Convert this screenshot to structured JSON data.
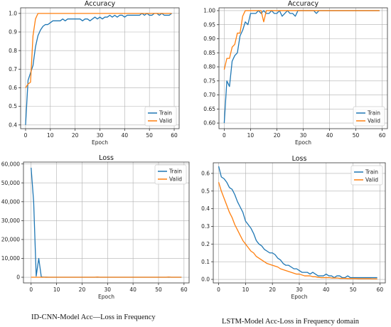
{
  "captions": {
    "left": "ID-CNN-Model Acc—Loss in Frequency",
    "right": "LSTM-Model Acc-Loss in Frequency domain"
  },
  "colors": {
    "train": "#1f77b4",
    "valid": "#ff7f0e",
    "grid": "#b0b0b0"
  },
  "chart_data": [
    {
      "id": "cnn-acc",
      "type": "line",
      "title": "Accuracy",
      "xlabel": "Epoch",
      "ylabel": "",
      "xlim": [
        -2,
        62
      ],
      "ylim": [
        0.38,
        1.03
      ],
      "xticks": [
        0,
        10,
        20,
        30,
        40,
        50,
        60
      ],
      "yticks": [
        0.4,
        0.5,
        0.6,
        0.7,
        0.8,
        0.9,
        1.0
      ],
      "ytick_labels": [
        "0.4",
        "0.5",
        "0.6",
        "0.7",
        "0.8",
        "0.9",
        "1.0"
      ],
      "grid": true,
      "legend": "bottom-right",
      "series": [
        {
          "name": "Train",
          "color": "train",
          "y": [
            0.4,
            0.64,
            0.68,
            0.72,
            0.82,
            0.88,
            0.91,
            0.93,
            0.94,
            0.94,
            0.95,
            0.96,
            0.96,
            0.96,
            0.96,
            0.97,
            0.96,
            0.97,
            0.97,
            0.97,
            0.97,
            0.97,
            0.97,
            0.96,
            0.97,
            0.97,
            0.96,
            0.97,
            0.98,
            0.97,
            0.98,
            0.97,
            0.98,
            0.98,
            0.99,
            0.98,
            0.99,
            0.98,
            0.99,
            0.99,
            0.98,
            0.99,
            0.99,
            0.99,
            0.99,
            0.99,
            0.99,
            1.0,
            0.99,
            1.0,
            0.99,
            0.99,
            1.0,
            1.0,
            0.99,
            1.0,
            0.99,
            0.99,
            0.99,
            1.0
          ]
        },
        {
          "name": "Valid",
          "color": "valid",
          "y": [
            0.6,
            0.62,
            0.63,
            0.88,
            0.97,
            1.0,
            1.0,
            1.0,
            1.0,
            1.0,
            1.0,
            1.0,
            1.0,
            1.0,
            1.0,
            1.0,
            1.0,
            1.0,
            1.0,
            1.0,
            1.0,
            1.0,
            1.0,
            1.0,
            1.0,
            1.0,
            1.0,
            1.0,
            1.0,
            1.0,
            1.0,
            1.0,
            1.0,
            1.0,
            1.0,
            1.0,
            1.0,
            1.0,
            1.0,
            1.0,
            1.0,
            1.0,
            1.0,
            1.0,
            1.0,
            1.0,
            1.0,
            1.0,
            1.0,
            1.0,
            1.0,
            1.0,
            1.0,
            1.0,
            1.0,
            1.0,
            1.0,
            1.0,
            1.0,
            1.0
          ]
        }
      ]
    },
    {
      "id": "lstm-acc",
      "type": "line",
      "title": "Accuracy",
      "xlabel": "Epoch",
      "ylabel": "",
      "xlim": [
        -2,
        62
      ],
      "ylim": [
        0.58,
        1.01
      ],
      "xticks": [
        0,
        10,
        20,
        30,
        40,
        50,
        60
      ],
      "yticks": [
        0.6,
        0.65,
        0.7,
        0.75,
        0.8,
        0.85,
        0.9,
        0.95,
        1.0
      ],
      "ytick_labels": [
        "0.60",
        "0.65",
        "0.70",
        "0.75",
        "0.80",
        "0.85",
        "0.90",
        "0.95",
        "1.00"
      ],
      "grid": true,
      "legend": "bottom-right",
      "series": [
        {
          "name": "Train",
          "color": "train",
          "y": [
            0.6,
            0.75,
            0.73,
            0.82,
            0.84,
            0.85,
            0.91,
            0.93,
            0.96,
            0.95,
            0.99,
            0.99,
            0.99,
            1.0,
            0.99,
            1.0,
            0.99,
            0.99,
            1.0,
            0.99,
            0.99,
            1.0,
            0.98,
            0.99,
            1.0,
            0.99,
            0.99,
            0.98,
            1.0,
            1.0,
            1.0,
            1.0,
            1.0,
            1.0,
            1.0,
            0.99,
            1.0,
            1.0,
            1.0,
            1.0,
            1.0,
            1.0,
            1.0,
            1.0,
            1.0,
            1.0,
            1.0,
            1.0,
            1.0,
            1.0,
            1.0,
            1.0,
            1.0,
            1.0,
            1.0,
            1.0,
            1.0,
            1.0,
            1.0,
            1.0
          ]
        },
        {
          "name": "Valid",
          "color": "valid",
          "y": [
            0.79,
            0.83,
            0.83,
            0.87,
            0.88,
            0.92,
            0.92,
            0.98,
            1.0,
            1.0,
            1.0,
            1.0,
            1.0,
            1.0,
            1.0,
            0.96,
            1.0,
            1.0,
            1.0,
            1.0,
            1.0,
            1.0,
            1.0,
            1.0,
            1.0,
            1.0,
            1.0,
            1.0,
            1.0,
            1.0,
            1.0,
            1.0,
            1.0,
            1.0,
            1.0,
            1.0,
            1.0,
            1.0,
            1.0,
            1.0,
            1.0,
            1.0,
            1.0,
            1.0,
            1.0,
            1.0,
            1.0,
            1.0,
            1.0,
            1.0,
            1.0,
            1.0,
            1.0,
            1.0,
            1.0,
            1.0,
            1.0,
            1.0,
            1.0,
            1.0
          ]
        }
      ]
    },
    {
      "id": "cnn-loss",
      "type": "line",
      "title": "Loss",
      "xlabel": "Epoch",
      "ylabel": "",
      "xlim": [
        -3,
        62
      ],
      "ylim": [
        -3000,
        61000
      ],
      "xticks": [
        0,
        10,
        20,
        30,
        40,
        50,
        60
      ],
      "yticks": [
        0,
        10000,
        20000,
        30000,
        40000,
        50000,
        60000
      ],
      "ytick_labels": [
        "0",
        "10,000",
        "20,000",
        "30,000",
        "40,000",
        "50,000",
        "60,000"
      ],
      "grid": true,
      "legend": "top-right",
      "series": [
        {
          "name": "Train",
          "color": "train",
          "y": [
            58000,
            40000,
            600,
            10000,
            200,
            50,
            30,
            20,
            10,
            10,
            10,
            10,
            10,
            10,
            10,
            10,
            10,
            10,
            10,
            10,
            10,
            10,
            10,
            10,
            10,
            10,
            10,
            10,
            10,
            10,
            10,
            10,
            10,
            10,
            10,
            10,
            10,
            10,
            10,
            10,
            10,
            10,
            10,
            10,
            10,
            10,
            10,
            10,
            10,
            10,
            10,
            10,
            10,
            10,
            10,
            10,
            10,
            10,
            10,
            10
          ]
        },
        {
          "name": "Valid",
          "color": "valid",
          "y": [
            0,
            0,
            0,
            0,
            0,
            0,
            0,
            0,
            0,
            0,
            0,
            0,
            0,
            0,
            0,
            0,
            0,
            0,
            0,
            0,
            0,
            0,
            0,
            0,
            0,
            0,
            150,
            0,
            0,
            0,
            0,
            0,
            0,
            0,
            0,
            0,
            0,
            0,
            0,
            0,
            0,
            0,
            0,
            0,
            0,
            0,
            0,
            0,
            0,
            0,
            0,
            0,
            0,
            0,
            150,
            0,
            0,
            0,
            0,
            0
          ]
        }
      ]
    },
    {
      "id": "lstm-loss",
      "type": "line",
      "title": "Loss",
      "xlabel": "Epoch",
      "ylabel": "",
      "xlim": [
        -2,
        62
      ],
      "ylim": [
        -0.02,
        0.66
      ],
      "xticks": [
        0,
        10,
        20,
        30,
        40,
        50,
        60
      ],
      "yticks": [
        0.0,
        0.1,
        0.2,
        0.3,
        0.4,
        0.5,
        0.6
      ],
      "ytick_labels": [
        "0.0",
        "0.1",
        "0.2",
        "0.3",
        "0.4",
        "0.5",
        "0.6"
      ],
      "grid": true,
      "legend": "top-right",
      "series": [
        {
          "name": "Train",
          "color": "train",
          "y": [
            0.64,
            0.58,
            0.57,
            0.55,
            0.52,
            0.51,
            0.48,
            0.44,
            0.41,
            0.38,
            0.33,
            0.31,
            0.29,
            0.26,
            0.22,
            0.2,
            0.19,
            0.17,
            0.16,
            0.15,
            0.15,
            0.14,
            0.12,
            0.11,
            0.09,
            0.08,
            0.08,
            0.07,
            0.06,
            0.06,
            0.05,
            0.04,
            0.04,
            0.04,
            0.03,
            0.04,
            0.03,
            0.02,
            0.02,
            0.02,
            0.03,
            0.02,
            0.02,
            0.01,
            0.02,
            0.02,
            0.01,
            0.01,
            0.02,
            0.01,
            0.01,
            0.01,
            0.01,
            0.01,
            0.01,
            0.01,
            0.01,
            0.01,
            0.01,
            0.01
          ]
        },
        {
          "name": "Valid",
          "color": "valid",
          "y": [
            0.55,
            0.5,
            0.46,
            0.42,
            0.38,
            0.35,
            0.31,
            0.28,
            0.25,
            0.22,
            0.2,
            0.18,
            0.16,
            0.15,
            0.13,
            0.12,
            0.11,
            0.1,
            0.09,
            0.085,
            0.08,
            0.075,
            0.07,
            0.06,
            0.055,
            0.05,
            0.045,
            0.04,
            0.035,
            0.03,
            0.03,
            0.025,
            0.02,
            0.02,
            0.02,
            0.015,
            0.015,
            0.012,
            0.01,
            0.01,
            0.01,
            0.01,
            0.008,
            0.008,
            0.008,
            0.006,
            0.006,
            0.006,
            0.005,
            0.005,
            0.005,
            0.005,
            0.004,
            0.004,
            0.004,
            0.004,
            0.004,
            0.003,
            0.003,
            0.003
          ]
        }
      ]
    }
  ]
}
